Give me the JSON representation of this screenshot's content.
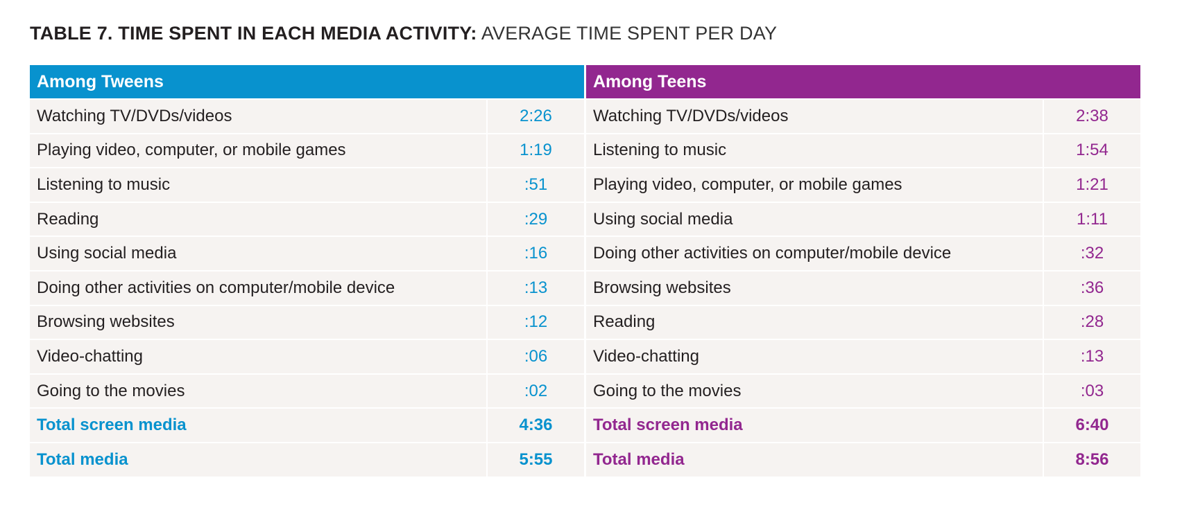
{
  "title": {
    "bold": "TABLE 7. TIME SPENT IN EACH MEDIA ACTIVITY:",
    "light": "AVERAGE TIME SPENT PER DAY"
  },
  "tweens": {
    "header": "Among Tweens",
    "rows": [
      {
        "label": "Watching TV/DVDs/videos",
        "value": "2:26"
      },
      {
        "label": "Playing video, computer, or mobile games",
        "value": "1:19"
      },
      {
        "label": "Listening to music",
        "value": ":51"
      },
      {
        "label": "Reading",
        "value": ":29"
      },
      {
        "label": "Using social media",
        "value": ":16"
      },
      {
        "label": "Doing other activities on computer/mobile device",
        "value": ":13"
      },
      {
        "label": "Browsing websites",
        "value": ":12"
      },
      {
        "label": "Video-chatting",
        "value": ":06"
      },
      {
        "label": "Going to the movies",
        "value": ":02"
      }
    ],
    "totals": [
      {
        "label": "Total screen media",
        "value": "4:36"
      },
      {
        "label": "Total media",
        "value": "5:55"
      }
    ]
  },
  "teens": {
    "header": "Among Teens",
    "rows": [
      {
        "label": "Watching TV/DVDs/videos",
        "value": "2:38"
      },
      {
        "label": "Listening to music",
        "value": "1:54"
      },
      {
        "label": "Playing video, computer, or mobile games",
        "value": "1:21"
      },
      {
        "label": "Using social media",
        "value": "1:11"
      },
      {
        "label": "Doing other activities on computer/mobile device",
        "value": ":32"
      },
      {
        "label": "Browsing websites",
        "value": ":36"
      },
      {
        "label": "Reading",
        "value": ":28"
      },
      {
        "label": "Video-chatting",
        "value": ":13"
      },
      {
        "label": "Going to the movies",
        "value": ":03"
      }
    ],
    "totals": [
      {
        "label": "Total screen media",
        "value": "6:40"
      },
      {
        "label": "Total media",
        "value": "8:56"
      }
    ]
  },
  "colors": {
    "tweens_accent": "#0892ce",
    "teens_accent": "#92278f",
    "row_background": "#f6f3f1"
  }
}
